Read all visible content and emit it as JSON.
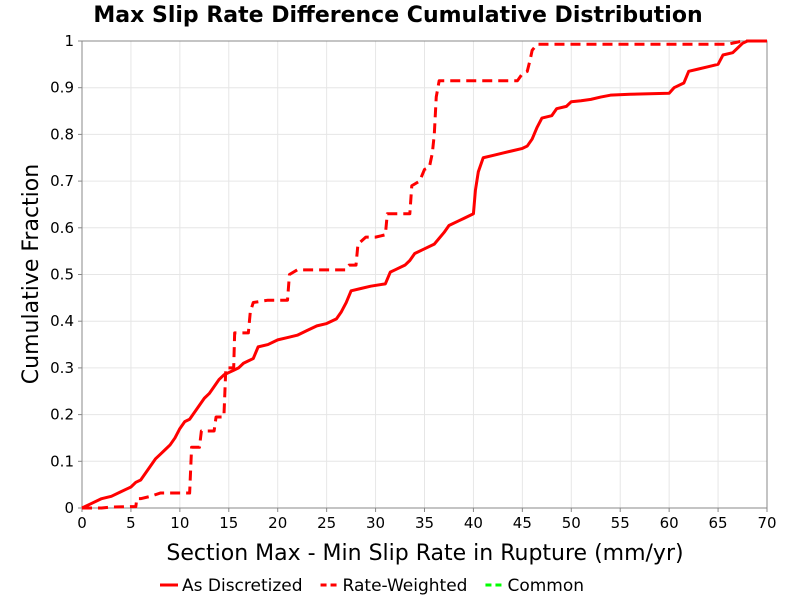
{
  "chart_data": {
    "type": "line",
    "title": "Max Slip Rate Difference Cumulative Distribution",
    "xlabel": "Section Max - Min Slip Rate in Rupture (mm/yr)",
    "ylabel": "Cumulative Fraction",
    "xlim": [
      0,
      70
    ],
    "ylim": [
      0,
      1
    ],
    "xticks": [
      "0",
      "5",
      "10",
      "15",
      "20",
      "25",
      "30",
      "35",
      "40",
      "45",
      "50",
      "55",
      "60",
      "65",
      "70"
    ],
    "yticks": [
      "0",
      "0.1",
      "0.2",
      "0.3",
      "0.4",
      "0.5",
      "0.6",
      "0.7",
      "0.8",
      "0.9",
      "1"
    ],
    "grid": true,
    "legend_position": "bottom",
    "series": [
      {
        "name": "As Discretized",
        "color": "#ff0000",
        "dash": "solid",
        "points": [
          [
            0,
            0
          ],
          [
            1,
            0.01
          ],
          [
            2,
            0.02
          ],
          [
            3,
            0.025
          ],
          [
            4,
            0.035
          ],
          [
            5,
            0.045
          ],
          [
            5.5,
            0.055
          ],
          [
            6,
            0.06
          ],
          [
            6.5,
            0.075
          ],
          [
            7,
            0.09
          ],
          [
            7.5,
            0.105
          ],
          [
            8,
            0.115
          ],
          [
            8.5,
            0.125
          ],
          [
            9,
            0.135
          ],
          [
            9.5,
            0.15
          ],
          [
            10,
            0.17
          ],
          [
            10.5,
            0.185
          ],
          [
            11,
            0.19
          ],
          [
            11.5,
            0.205
          ],
          [
            12,
            0.22
          ],
          [
            12.5,
            0.235
          ],
          [
            13,
            0.245
          ],
          [
            13.5,
            0.26
          ],
          [
            14,
            0.275
          ],
          [
            14.5,
            0.285
          ],
          [
            15,
            0.29
          ],
          [
            15.5,
            0.295
          ],
          [
            16,
            0.3
          ],
          [
            16.5,
            0.31
          ],
          [
            17,
            0.315
          ],
          [
            17.5,
            0.32
          ],
          [
            18,
            0.345
          ],
          [
            19,
            0.35
          ],
          [
            20,
            0.36
          ],
          [
            21,
            0.365
          ],
          [
            22,
            0.37
          ],
          [
            23,
            0.38
          ],
          [
            24,
            0.39
          ],
          [
            25,
            0.395
          ],
          [
            26,
            0.405
          ],
          [
            26.5,
            0.42
          ],
          [
            27,
            0.44
          ],
          [
            27.5,
            0.465
          ],
          [
            28.5,
            0.47
          ],
          [
            29.5,
            0.475
          ],
          [
            31,
            0.48
          ],
          [
            31.5,
            0.505
          ],
          [
            32,
            0.51
          ],
          [
            33,
            0.52
          ],
          [
            33.5,
            0.53
          ],
          [
            34,
            0.545
          ],
          [
            35,
            0.555
          ],
          [
            36,
            0.565
          ],
          [
            37,
            0.59
          ],
          [
            37.5,
            0.605
          ],
          [
            38.5,
            0.615
          ],
          [
            39,
            0.62
          ],
          [
            39.5,
            0.625
          ],
          [
            40,
            0.63
          ],
          [
            40.2,
            0.68
          ],
          [
            40.5,
            0.72
          ],
          [
            41,
            0.75
          ],
          [
            42,
            0.755
          ],
          [
            43,
            0.76
          ],
          [
            44,
            0.765
          ],
          [
            45,
            0.77
          ],
          [
            45.5,
            0.775
          ],
          [
            46,
            0.79
          ],
          [
            46.5,
            0.815
          ],
          [
            47,
            0.835
          ],
          [
            48,
            0.84
          ],
          [
            48.5,
            0.855
          ],
          [
            49.5,
            0.86
          ],
          [
            50,
            0.87
          ],
          [
            51,
            0.872
          ],
          [
            52,
            0.875
          ],
          [
            53,
            0.88
          ],
          [
            54,
            0.884
          ],
          [
            56,
            0.886
          ],
          [
            58,
            0.887
          ],
          [
            60,
            0.888
          ],
          [
            60.5,
            0.9
          ],
          [
            61.5,
            0.91
          ],
          [
            62,
            0.935
          ],
          [
            63,
            0.94
          ],
          [
            64,
            0.945
          ],
          [
            65,
            0.95
          ],
          [
            65.5,
            0.97
          ],
          [
            66.5,
            0.975
          ],
          [
            67,
            0.985
          ],
          [
            67.5,
            0.995
          ],
          [
            68,
            1
          ],
          [
            70,
            1
          ]
        ]
      },
      {
        "name": "Rate-Weighted",
        "color": "#ff0000",
        "dash": "dashed",
        "points": [
          [
            0,
            0
          ],
          [
            2,
            0
          ],
          [
            3,
            0.002
          ],
          [
            5,
            0.003
          ],
          [
            5.5,
            0.003
          ],
          [
            5.6,
            0.02
          ],
          [
            6,
            0.02
          ],
          [
            7,
            0.025
          ],
          [
            8,
            0.032
          ],
          [
            11,
            0.032
          ],
          [
            11.2,
            0.13
          ],
          [
            12,
            0.13
          ],
          [
            12.2,
            0.165
          ],
          [
            13.5,
            0.165
          ],
          [
            13.7,
            0.195
          ],
          [
            14.5,
            0.195
          ],
          [
            14.7,
            0.3
          ],
          [
            15.5,
            0.3
          ],
          [
            15.6,
            0.375
          ],
          [
            17,
            0.375
          ],
          [
            17.2,
            0.42
          ],
          [
            17.5,
            0.44
          ],
          [
            19,
            0.445
          ],
          [
            21,
            0.445
          ],
          [
            21.2,
            0.5
          ],
          [
            22,
            0.51
          ],
          [
            27,
            0.51
          ],
          [
            27.3,
            0.52
          ],
          [
            28,
            0.52
          ],
          [
            28.2,
            0.565
          ],
          [
            29,
            0.58
          ],
          [
            30,
            0.58
          ],
          [
            31,
            0.585
          ],
          [
            31.2,
            0.63
          ],
          [
            33.5,
            0.63
          ],
          [
            33.7,
            0.69
          ],
          [
            34.5,
            0.7
          ],
          [
            35,
            0.725
          ],
          [
            35.5,
            0.73
          ],
          [
            35.8,
            0.76
          ],
          [
            36,
            0.8
          ],
          [
            36.2,
            0.88
          ],
          [
            36.5,
            0.915
          ],
          [
            44.5,
            0.915
          ],
          [
            45,
            0.93
          ],
          [
            45.5,
            0.935
          ],
          [
            45.8,
            0.96
          ],
          [
            46,
            0.98
          ],
          [
            46.5,
            0.993
          ],
          [
            66,
            0.993
          ],
          [
            67.5,
            1
          ],
          [
            70,
            1
          ]
        ]
      },
      {
        "name": "Common",
        "color": "#00ff00",
        "dash": "dashed",
        "points": []
      }
    ]
  }
}
